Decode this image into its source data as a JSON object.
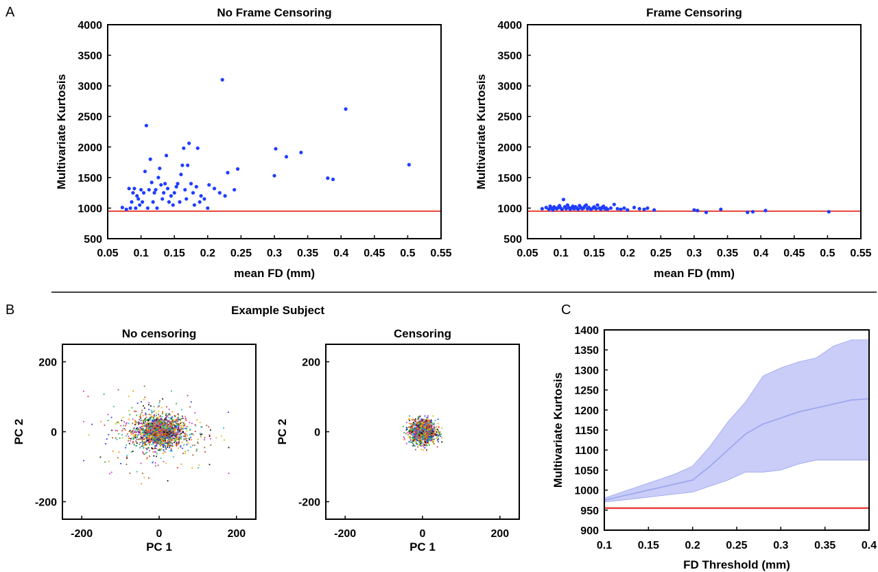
{
  "panels": {
    "a": {
      "letter": "A"
    },
    "b": {
      "letter": "B",
      "heading": "Example Subject"
    },
    "c": {
      "letter": "C"
    }
  },
  "colors": {
    "points": "#1f3dff",
    "reference_line": "#e8403a",
    "band_fill": "#c9cdf7",
    "band_line": "#9aa3ef",
    "cloud": [
      "#1f3dff",
      "#d9393a",
      "#20b040",
      "#111111",
      "#e0b800",
      "#a0522d",
      "#cc33cc",
      "#22bbbb",
      "#ff8800"
    ]
  },
  "chart_data": [
    {
      "id": "a1",
      "type": "scatter",
      "title": "No Frame Censoring",
      "xlabel": "mean FD (mm)",
      "ylabel": "Multivariate Kurtosis",
      "xlim": [
        0.05,
        0.55
      ],
      "ylim": [
        500,
        4000
      ],
      "xticks": [
        "0.05",
        "0.1",
        "0.15",
        "0.2",
        "0.25",
        "0.3",
        "0.35",
        "0.4",
        "0.45",
        "0.5",
        "0.55"
      ],
      "yticks": [
        "500",
        "1000",
        "1500",
        "2000",
        "2500",
        "3000",
        "3500",
        "4000"
      ],
      "reference_y": 950,
      "grid": false,
      "points": [
        [
          0.072,
          1010
        ],
        [
          0.078,
          980
        ],
        [
          0.082,
          1320
        ],
        [
          0.084,
          1000
        ],
        [
          0.086,
          1100
        ],
        [
          0.088,
          1250
        ],
        [
          0.09,
          1320
        ],
        [
          0.092,
          1000
        ],
        [
          0.094,
          1200
        ],
        [
          0.096,
          1150
        ],
        [
          0.098,
          1050
        ],
        [
          0.1,
          1300
        ],
        [
          0.102,
          1100
        ],
        [
          0.104,
          1250
        ],
        [
          0.106,
          1600
        ],
        [
          0.108,
          2350
        ],
        [
          0.11,
          1000
        ],
        [
          0.112,
          1300
        ],
        [
          0.114,
          1800
        ],
        [
          0.116,
          1420
        ],
        [
          0.118,
          1100
        ],
        [
          0.12,
          1250
        ],
        [
          0.122,
          1300
        ],
        [
          0.124,
          1000
        ],
        [
          0.126,
          1500
        ],
        [
          0.128,
          1650
        ],
        [
          0.13,
          1380
        ],
        [
          0.132,
          1150
        ],
        [
          0.134,
          1250
        ],
        [
          0.136,
          1400
        ],
        [
          0.138,
          1860
        ],
        [
          0.14,
          1320
        ],
        [
          0.142,
          1100
        ],
        [
          0.145,
          1200
        ],
        [
          0.148,
          1050
        ],
        [
          0.15,
          1250
        ],
        [
          0.153,
          1350
        ],
        [
          0.155,
          1400
        ],
        [
          0.158,
          1100
        ],
        [
          0.16,
          1550
        ],
        [
          0.162,
          1700
        ],
        [
          0.164,
          1980
        ],
        [
          0.166,
          1300
        ],
        [
          0.168,
          1150
        ],
        [
          0.17,
          1700
        ],
        [
          0.172,
          2060
        ],
        [
          0.175,
          1400
        ],
        [
          0.178,
          1250
        ],
        [
          0.18,
          1050
        ],
        [
          0.183,
          1350
        ],
        [
          0.185,
          1980
        ],
        [
          0.188,
          1100
        ],
        [
          0.19,
          1200
        ],
        [
          0.195,
          1150
        ],
        [
          0.2,
          1000
        ],
        [
          0.202,
          1380
        ],
        [
          0.21,
          1320
        ],
        [
          0.218,
          1250
        ],
        [
          0.222,
          3100
        ],
        [
          0.226,
          1200
        ],
        [
          0.23,
          1580
        ],
        [
          0.24,
          1300
        ],
        [
          0.245,
          1640
        ],
        [
          0.3,
          1530
        ],
        [
          0.302,
          1970
        ],
        [
          0.318,
          1840
        ],
        [
          0.34,
          1910
        ],
        [
          0.38,
          1490
        ],
        [
          0.388,
          1470
        ],
        [
          0.407,
          2620
        ],
        [
          0.502,
          1710
        ]
      ]
    },
    {
      "id": "a2",
      "type": "scatter",
      "title": "Frame Censoring",
      "xlabel": "mean FD (mm)",
      "ylabel": "Multivariate Kurtosis",
      "xlim": [
        0.05,
        0.55
      ],
      "ylim": [
        500,
        4000
      ],
      "xticks": [
        "0.05",
        "0.1",
        "0.15",
        "0.2",
        "0.25",
        "0.3",
        "0.35",
        "0.4",
        "0.45",
        "0.5",
        "0.55"
      ],
      "yticks": [
        "500",
        "1000",
        "1500",
        "2000",
        "2500",
        "3000",
        "3500",
        "4000"
      ],
      "reference_y": 950,
      "grid": false,
      "points": [
        [
          0.072,
          990
        ],
        [
          0.078,
          1010
        ],
        [
          0.082,
          980
        ],
        [
          0.084,
          1030
        ],
        [
          0.086,
          1000
        ],
        [
          0.088,
          970
        ],
        [
          0.09,
          1020
        ],
        [
          0.092,
          1000
        ],
        [
          0.094,
          990
        ],
        [
          0.096,
          1010
        ],
        [
          0.098,
          1040
        ],
        [
          0.1,
          1000
        ],
        [
          0.102,
          980
        ],
        [
          0.104,
          1140
        ],
        [
          0.106,
          1020
        ],
        [
          0.108,
          990
        ],
        [
          0.11,
          1050
        ],
        [
          0.112,
          1010
        ],
        [
          0.114,
          980
        ],
        [
          0.116,
          1000
        ],
        [
          0.118,
          1030
        ],
        [
          0.12,
          990
        ],
        [
          0.122,
          1020
        ],
        [
          0.124,
          1000
        ],
        [
          0.126,
          980
        ],
        [
          0.128,
          1040
        ],
        [
          0.13,
          1010
        ],
        [
          0.132,
          990
        ],
        [
          0.134,
          1000
        ],
        [
          0.136,
          1030
        ],
        [
          0.138,
          1050
        ],
        [
          0.14,
          990
        ],
        [
          0.142,
          1010
        ],
        [
          0.145,
          980
        ],
        [
          0.148,
          1000
        ],
        [
          0.15,
          1020
        ],
        [
          0.153,
          990
        ],
        [
          0.155,
          1050
        ],
        [
          0.158,
          1000
        ],
        [
          0.16,
          980
        ],
        [
          0.162,
          1010
        ],
        [
          0.164,
          1030
        ],
        [
          0.166,
          990
        ],
        [
          0.168,
          1000
        ],
        [
          0.17,
          980
        ],
        [
          0.175,
          1000
        ],
        [
          0.18,
          1060
        ],
        [
          0.185,
          990
        ],
        [
          0.19,
          980
        ],
        [
          0.195,
          1000
        ],
        [
          0.2,
          970
        ],
        [
          0.21,
          1010
        ],
        [
          0.218,
          990
        ],
        [
          0.225,
          980
        ],
        [
          0.23,
          1000
        ],
        [
          0.24,
          970
        ],
        [
          0.3,
          970
        ],
        [
          0.305,
          960
        ],
        [
          0.318,
          930
        ],
        [
          0.34,
          980
        ],
        [
          0.38,
          930
        ],
        [
          0.388,
          940
        ],
        [
          0.407,
          960
        ],
        [
          0.502,
          940
        ]
      ]
    },
    {
      "id": "b1",
      "type": "scatter",
      "title": "No censoring",
      "xlabel": "PC 1",
      "ylabel": "PC 2",
      "xlim": [
        -250,
        250
      ],
      "ylim": [
        -250,
        250
      ],
      "xticks": [
        "-200",
        "0",
        "200"
      ],
      "yticks": [
        "-200",
        "0",
        "200"
      ],
      "xtick_values": [
        -200,
        0,
        200
      ],
      "ytick_values": [
        -200,
        0,
        200
      ],
      "core_spread": [
        30,
        22
      ],
      "outer_spread": [
        75,
        55
      ],
      "outer_range": [
        [
          -195,
          180
        ],
        [
          -205,
          130
        ]
      ]
    },
    {
      "id": "b2",
      "type": "scatter",
      "title": "Censoring",
      "xlabel": "PC 1",
      "ylabel": "PC 2",
      "xlim": [
        -250,
        250
      ],
      "ylim": [
        -250,
        250
      ],
      "xticks": [
        "-200",
        "0",
        "200"
      ],
      "yticks": [
        "-200",
        "0",
        "200"
      ],
      "xtick_values": [
        -200,
        0,
        200
      ],
      "ytick_values": [
        -200,
        0,
        200
      ],
      "core_spread": [
        17,
        17
      ],
      "outer_range": [
        [
          -50,
          50
        ],
        [
          -55,
          45
        ]
      ]
    },
    {
      "id": "c",
      "type": "area",
      "xlabel": "FD Threshold (mm)",
      "ylabel": "Multivariate Kurtosis",
      "xlim": [
        0.1,
        0.4
      ],
      "ylim": [
        900,
        1400
      ],
      "xticks": [
        "0.1",
        "0.15",
        "0.2",
        "0.25",
        "0.3",
        "0.35",
        "0.4"
      ],
      "yticks": [
        "900",
        "950",
        "1000",
        "1050",
        "1100",
        "1150",
        "1200",
        "1250",
        "1300",
        "1350",
        "1400"
      ],
      "reference_y": 955,
      "grid": false,
      "x": [
        0.1,
        0.12,
        0.14,
        0.16,
        0.18,
        0.2,
        0.22,
        0.24,
        0.26,
        0.28,
        0.3,
        0.32,
        0.34,
        0.36,
        0.38,
        0.4
      ],
      "mean": [
        975,
        985,
        995,
        1005,
        1015,
        1025,
        1060,
        1100,
        1140,
        1165,
        1180,
        1195,
        1205,
        1215,
        1225,
        1228
      ],
      "upper": [
        980,
        995,
        1010,
        1025,
        1040,
        1060,
        1110,
        1170,
        1220,
        1285,
        1305,
        1320,
        1330,
        1360,
        1375,
        1375
      ],
      "lower": [
        970,
        975,
        980,
        985,
        990,
        995,
        1010,
        1025,
        1045,
        1045,
        1050,
        1065,
        1075,
        1075,
        1075,
        1075
      ]
    }
  ]
}
